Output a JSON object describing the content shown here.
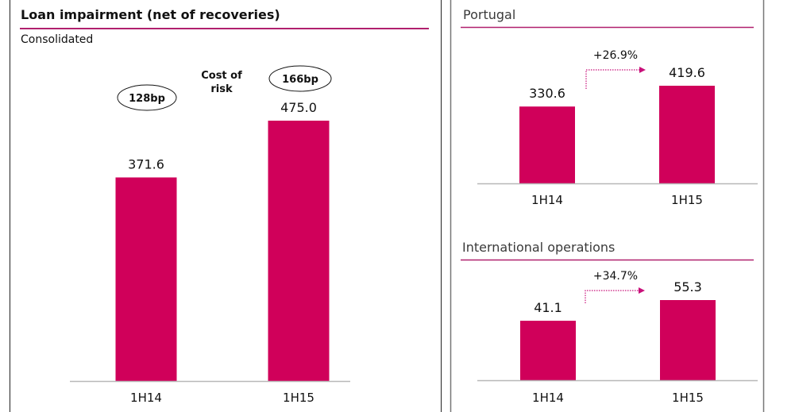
{
  "colors": {
    "bar": "#d0005a",
    "accent_line": "#b0206e",
    "arrow": "#c8107a",
    "axis": "#b8b8b8",
    "text": "#111111",
    "section_text": "#3a3a3a"
  },
  "chart_data": [
    {
      "type": "bar",
      "title": "Loan impairment (net of recoveries)",
      "subtitle": "Consolidated",
      "categories": [
        "1H14",
        "1H15"
      ],
      "values": [
        371.6,
        475.0
      ],
      "value_labels": [
        "371.6",
        "475.0"
      ],
      "ylim": [
        0,
        500
      ],
      "grid": false,
      "annotations": {
        "cost_of_risk_label_line1": "Cost of",
        "cost_of_risk_label_line2": "risk",
        "cost_of_risk": [
          "128bp",
          "166bp"
        ]
      }
    },
    {
      "type": "bar",
      "title": "Portugal",
      "categories": [
        "1H14",
        "1H15"
      ],
      "values": [
        330.6,
        419.6
      ],
      "value_labels": [
        "330.6",
        "419.6"
      ],
      "change_label": "+26.9%",
      "ylim": [
        0,
        420
      ],
      "grid": false
    },
    {
      "type": "bar",
      "title": "International operations",
      "categories": [
        "1H14",
        "1H15"
      ],
      "values": [
        41.1,
        55.3
      ],
      "value_labels": [
        "41.1",
        "55.3"
      ],
      "change_label": "+34.7%",
      "ylim": [
        0,
        55.3
      ],
      "grid": false
    }
  ]
}
